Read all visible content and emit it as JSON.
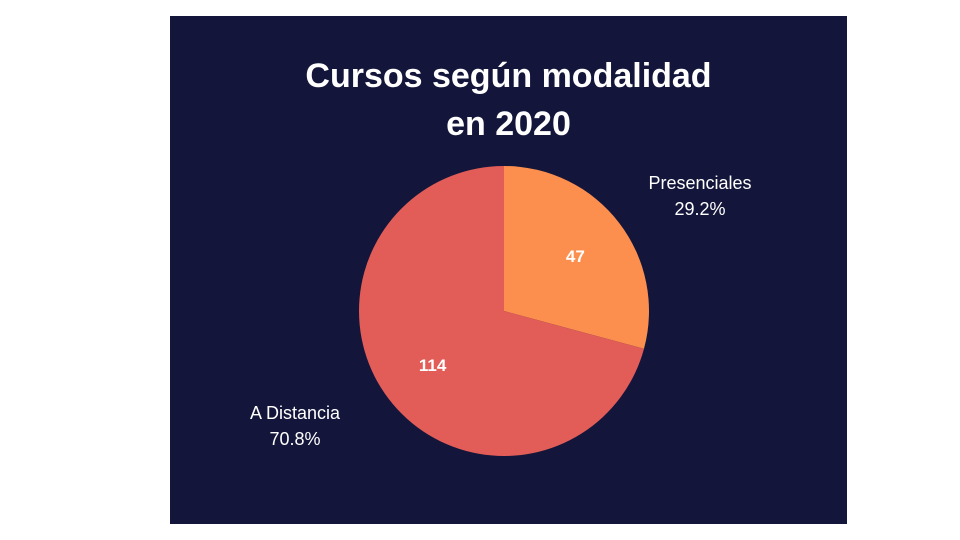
{
  "chart_data": {
    "type": "pie",
    "title_lines": [
      "Cursos según modalidad",
      "en 2020"
    ],
    "slices": [
      {
        "label": "Presenciales",
        "value": 47,
        "percent": "29.2%",
        "color": "#fd8f4e"
      },
      {
        "label": "A Distancia",
        "value": 114,
        "percent": "70.8%",
        "color": "#e25d58"
      }
    ],
    "start_angle_deg": 0,
    "direction": "clockwise",
    "background": "#13163a"
  }
}
